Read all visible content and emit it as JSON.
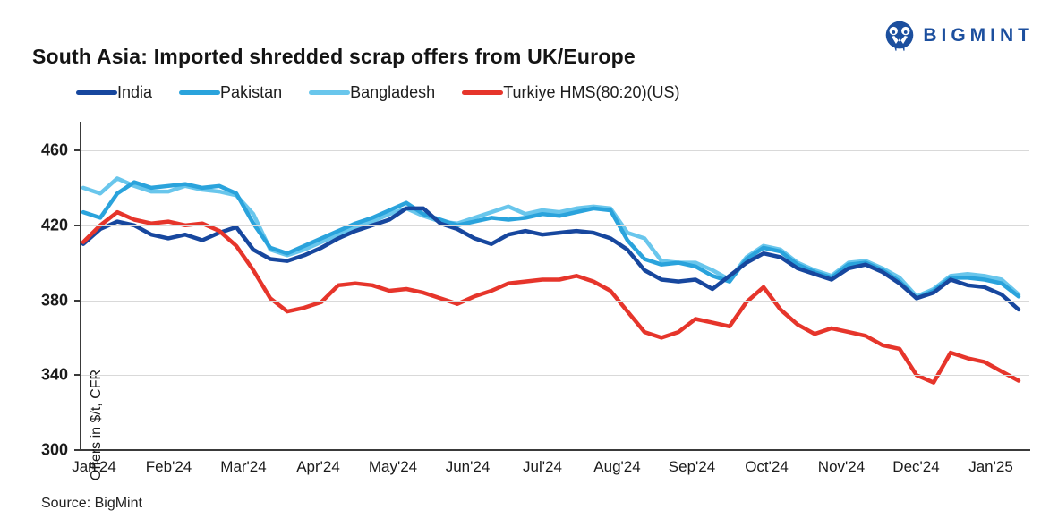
{
  "logo": {
    "text": "BIGMINT",
    "brand_color": "#1C4F9E"
  },
  "title": "South Asia: Imported shredded scrap offers from UK/Europe",
  "source": "Source: BigMint",
  "chart_data": {
    "type": "line",
    "title": "South Asia: Imported shredded scrap offers from UK/Europe",
    "xlabel": "",
    "ylabel": "Offers in $/t, CFR",
    "ylim": [
      300,
      460
    ],
    "yticks": [
      300,
      340,
      380,
      420,
      460
    ],
    "grid": "horizontal",
    "grid_color": "#d9d9d9",
    "axis_color": "#3a3a3a",
    "legend_position": "top",
    "x_labels": [
      "Jan'24",
      "Feb'24",
      "Mar'24",
      "Apr'24",
      "May'24",
      "Jun'24",
      "Jul'24",
      "Aug'24",
      "Sep'24",
      "Oct'24",
      "Nov'24",
      "Dec'24",
      "Jan'25"
    ],
    "points_per_month": [
      5,
      4,
      4,
      5,
      4,
      4,
      5,
      4,
      4,
      5,
      4,
      4,
      4
    ],
    "series": [
      {
        "name": "India",
        "color": "#17479E",
        "values": [
          410,
          418,
          422,
          420,
          415,
          413,
          415,
          412,
          416,
          419,
          407,
          402,
          401,
          404,
          408,
          413,
          417,
          420,
          423,
          429,
          429,
          421,
          418,
          413,
          410,
          415,
          417,
          415,
          416,
          417,
          416,
          413,
          407,
          396,
          391,
          390,
          391,
          386,
          393,
          400,
          405,
          403,
          397,
          394,
          391,
          397,
          399,
          395,
          389,
          381,
          384,
          391,
          388,
          387,
          383,
          375
        ]
      },
      {
        "name": "Pakistan",
        "color": "#2AA3DC",
        "values": [
          427,
          424,
          437,
          443,
          440,
          441,
          442,
          440,
          441,
          437,
          421,
          408,
          405,
          409,
          413,
          417,
          421,
          424,
          428,
          432,
          426,
          423,
          420,
          422,
          424,
          423,
          424,
          426,
          425,
          427,
          429,
          428,
          412,
          402,
          399,
          400,
          398,
          393,
          390,
          402,
          408,
          406,
          399,
          395,
          392,
          399,
          400,
          396,
          390,
          381,
          385,
          392,
          392,
          391,
          389,
          382
        ]
      },
      {
        "name": "Bangladesh",
        "color": "#69C6EC",
        "values": [
          440,
          437,
          445,
          441,
          438,
          438,
          441,
          439,
          438,
          436,
          426,
          407,
          404,
          407,
          411,
          415,
          419,
          422,
          426,
          429,
          425,
          422,
          421,
          424,
          427,
          430,
          426,
          428,
          427,
          429,
          430,
          429,
          416,
          413,
          401,
          400,
          400,
          396,
          391,
          403,
          409,
          407,
          400,
          396,
          393,
          400,
          401,
          397,
          392,
          382,
          386,
          393,
          394,
          393,
          391,
          383
        ]
      },
      {
        "name": "Turkiye HMS(80:20)(US)",
        "color": "#E6352B",
        "values": [
          411,
          420,
          427,
          423,
          421,
          422,
          420,
          421,
          417,
          409,
          396,
          381,
          374,
          376,
          379,
          388,
          389,
          388,
          385,
          386,
          384,
          381,
          378,
          382,
          385,
          389,
          390,
          391,
          391,
          393,
          390,
          385,
          374,
          363,
          360,
          363,
          370,
          368,
          366,
          379,
          387,
          375,
          367,
          362,
          365,
          363,
          361,
          356,
          354,
          340,
          336,
          352,
          349,
          347,
          342,
          337
        ]
      }
    ]
  }
}
